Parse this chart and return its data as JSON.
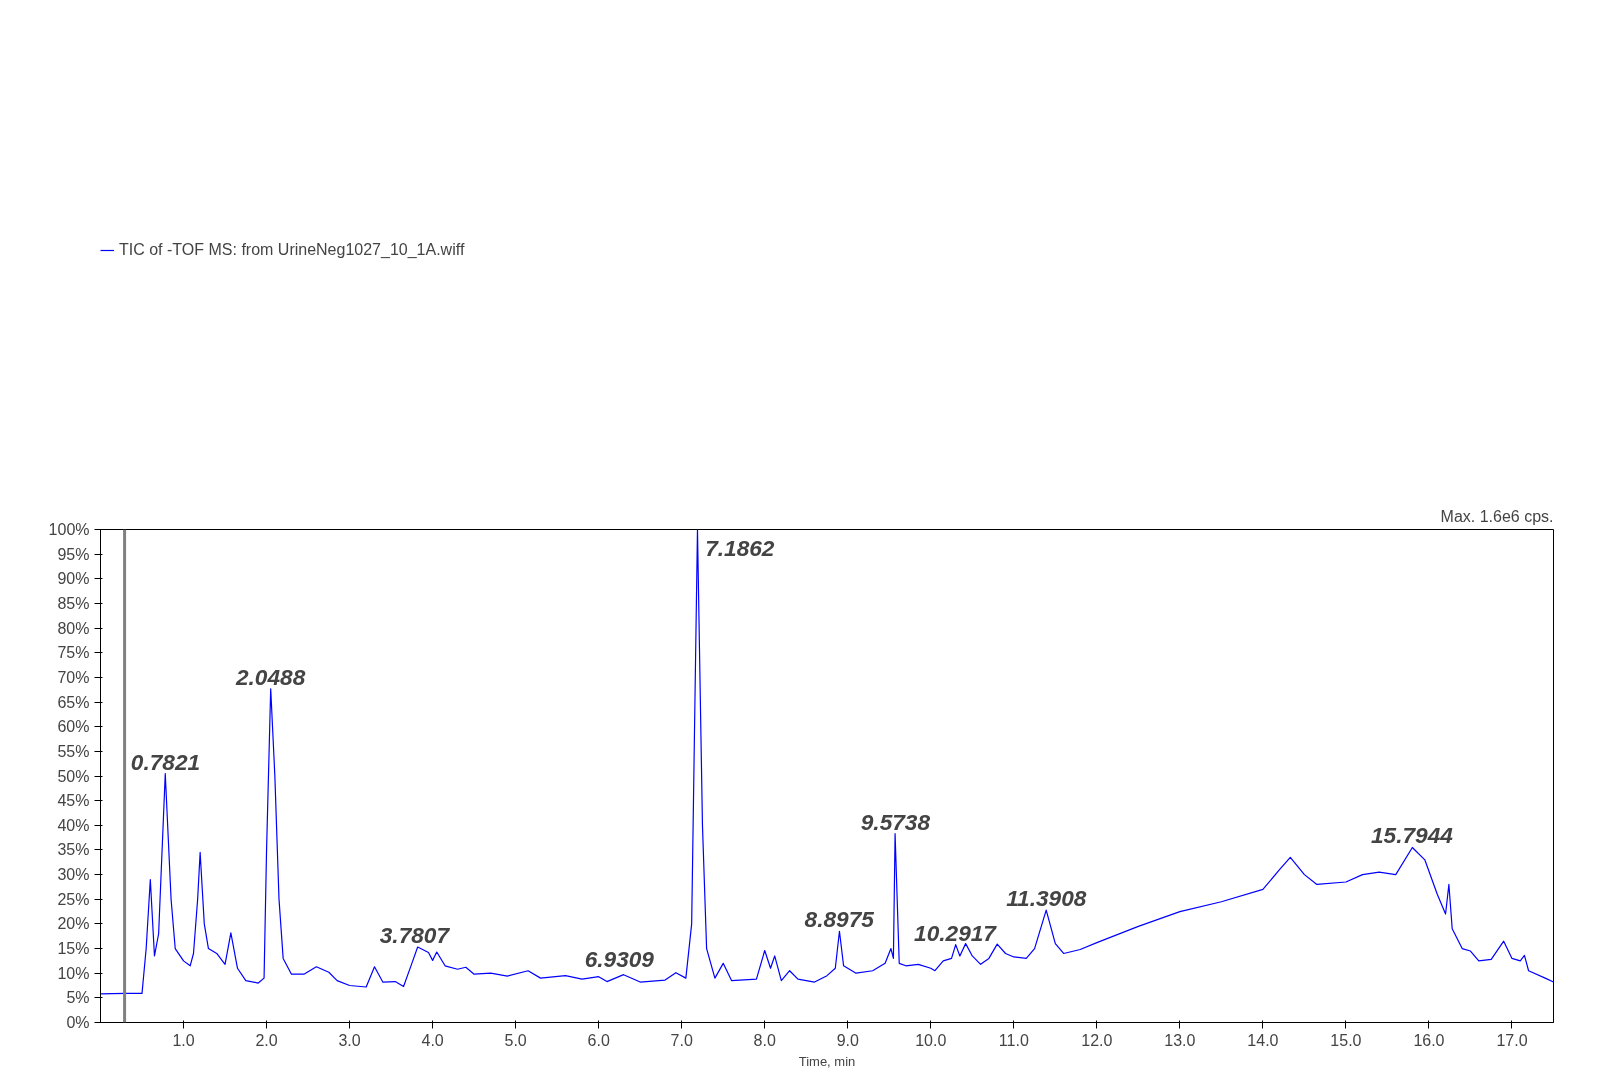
{
  "chart_data": {
    "type": "line",
    "xlabel": "Time, min",
    "legend": "top left",
    "grid": false,
    "line_style": "solid",
    "xlim": [
      0,
      17.5
    ],
    "ylim": [
      0,
      100
    ],
    "xticks": [
      {
        "value": 1,
        "label": "1.0"
      },
      {
        "value": 2,
        "label": "2.0"
      },
      {
        "value": 3,
        "label": "3.0"
      },
      {
        "value": 4,
        "label": "4.0"
      },
      {
        "value": 5,
        "label": "5.0"
      },
      {
        "value": 6,
        "label": "6.0"
      },
      {
        "value": 7,
        "label": "7.0"
      },
      {
        "value": 8,
        "label": "8.0"
      },
      {
        "value": 9,
        "label": "9.0"
      },
      {
        "value": 10,
        "label": "10.0"
      },
      {
        "value": 11,
        "label": "11.0"
      },
      {
        "value": 12,
        "label": "12.0"
      },
      {
        "value": 13,
        "label": "13.0"
      },
      {
        "value": 14,
        "label": "14.0"
      },
      {
        "value": 15,
        "label": "15.0"
      },
      {
        "value": 16,
        "label": "16.0"
      },
      {
        "value": 17,
        "label": "17.0"
      }
    ],
    "yticks": [
      {
        "value": 0,
        "label": "0%"
      },
      {
        "value": 5,
        "label": "5%"
      },
      {
        "value": 10,
        "label": "10%"
      },
      {
        "value": 15,
        "label": "15%"
      },
      {
        "value": 20,
        "label": "20%"
      },
      {
        "value": 25,
        "label": "25%"
      },
      {
        "value": 30,
        "label": "30%"
      },
      {
        "value": 35,
        "label": "35%"
      },
      {
        "value": 40,
        "label": "40%"
      },
      {
        "value": 45,
        "label": "45%"
      },
      {
        "value": 50,
        "label": "50%"
      },
      {
        "value": 55,
        "label": "55%"
      },
      {
        "value": 60,
        "label": "60%"
      },
      {
        "value": 65,
        "label": "65%"
      },
      {
        "value": 70,
        "label": "70%"
      },
      {
        "value": 75,
        "label": "75%"
      },
      {
        "value": 80,
        "label": "80%"
      },
      {
        "value": 85,
        "label": "85%"
      },
      {
        "value": 90,
        "label": "90%"
      },
      {
        "value": 95,
        "label": "95%"
      },
      {
        "value": 100,
        "label": "100%"
      }
    ],
    "series": [
      {
        "name": "TIC of -TOF MS: from UrineNeg1027_10_1A.wiff",
        "color": "#0000ff",
        "x": [
          0.0,
          0.3,
          0.5,
          0.55,
          0.6,
          0.65,
          0.7,
          0.78,
          0.85,
          0.9,
          1.0,
          1.08,
          1.12,
          1.17,
          1.2,
          1.25,
          1.3,
          1.4,
          1.5,
          1.57,
          1.65,
          1.75,
          1.9,
          1.97,
          2.0,
          2.05,
          2.1,
          2.15,
          2.2,
          2.3,
          2.45,
          2.6,
          2.75,
          2.85,
          3.0,
          3.2,
          3.3,
          3.4,
          3.55,
          3.65,
          3.75,
          3.82,
          3.95,
          4.0,
          4.05,
          4.15,
          4.3,
          4.4,
          4.5,
          4.7,
          4.9,
          5.15,
          5.3,
          5.6,
          5.8,
          6.0,
          6.1,
          6.3,
          6.5,
          6.8,
          6.93,
          7.05,
          7.12,
          7.19,
          7.25,
          7.3,
          7.4,
          7.5,
          7.6,
          7.9,
          8.0,
          8.07,
          8.12,
          8.2,
          8.3,
          8.4,
          8.6,
          8.75,
          8.85,
          8.9,
          8.95,
          9.1,
          9.3,
          9.45,
          9.52,
          9.55,
          9.57,
          9.62,
          9.7,
          9.85,
          10.0,
          10.05,
          10.15,
          10.25,
          10.3,
          10.35,
          10.42,
          10.5,
          10.6,
          10.7,
          10.8,
          10.9,
          11.0,
          11.15,
          11.25,
          11.39,
          11.5,
          11.6,
          11.8,
          12.0,
          12.5,
          13.0,
          13.5,
          14.0,
          14.2,
          14.33,
          14.5,
          14.65,
          15.0,
          15.2,
          15.4,
          15.6,
          15.8,
          15.95,
          16.1,
          16.2,
          16.24,
          16.28,
          16.4,
          16.5,
          16.6,
          16.75,
          16.9,
          17.0,
          17.1,
          17.15,
          17.2,
          17.4,
          17.5
        ],
        "values": [
          5.8,
          5.9,
          5.9,
          15,
          29,
          13.5,
          18,
          50.5,
          25,
          15,
          12.5,
          11.5,
          14,
          25,
          34.5,
          20,
          15,
          14,
          11.8,
          18.2,
          11,
          8.5,
          8,
          9,
          35,
          67.7,
          50,
          25,
          13,
          9.8,
          9.8,
          11.3,
          10.2,
          8.5,
          7.5,
          7.2,
          11.3,
          8.2,
          8.3,
          7.3,
          12,
          15.3,
          14.2,
          12.6,
          14.3,
          11.5,
          10.8,
          11.2,
          9.8,
          10,
          9.4,
          10.5,
          9,
          9.5,
          8.8,
          9.3,
          8.3,
          9.7,
          8.2,
          8.6,
          10.1,
          9,
          20,
          100,
          40,
          15,
          9,
          12,
          8.5,
          8.8,
          14.6,
          11,
          13.5,
          8.5,
          10.5,
          8.8,
          8.2,
          9.5,
          11,
          18.5,
          11.5,
          10,
          10.5,
          12,
          15,
          13,
          38.3,
          12,
          11.5,
          11.8,
          11,
          10.5,
          12.5,
          13,
          15.8,
          13.5,
          16,
          13.5,
          11.8,
          13,
          15.9,
          14,
          13.3,
          13,
          15,
          22.8,
          16,
          14,
          14.8,
          16.2,
          19.5,
          22.5,
          24.5,
          27,
          31,
          33.5,
          30,
          28,
          28.5,
          30,
          30.5,
          30,
          35.5,
          33,
          26,
          22,
          28,
          19,
          15,
          14.5,
          12.5,
          12.8,
          16.5,
          13,
          12.5,
          13.6,
          10.5,
          9,
          8.2
        ]
      }
    ],
    "ref_lines": [
      {
        "axis": "x",
        "value": 0.29,
        "color": "#808080"
      }
    ],
    "annotations": [
      {
        "text": "0.7821",
        "x": 0.7821,
        "y": 50.5
      },
      {
        "text": "2.0488",
        "x": 2.0488,
        "y": 67.7
      },
      {
        "text": "3.7807",
        "x": 3.7807,
        "y": 15.3
      },
      {
        "text": "6.9309",
        "x": 6.9309,
        "y": 10.1
      },
      {
        "text": "7.1862",
        "x": 7.1862,
        "y": 100
      },
      {
        "text": "8.8975",
        "x": 8.8975,
        "y": 18.5
      },
      {
        "text": "9.5738",
        "x": 9.5738,
        "y": 38.3
      },
      {
        "text": "10.2917",
        "x": 10.2917,
        "y": 15.8
      },
      {
        "text": "11.3908",
        "x": 11.3908,
        "y": 22.8
      },
      {
        "text": "15.7944",
        "x": 15.7944,
        "y": 35.5
      },
      "Max. 1.6e6 cps."
    ]
  }
}
